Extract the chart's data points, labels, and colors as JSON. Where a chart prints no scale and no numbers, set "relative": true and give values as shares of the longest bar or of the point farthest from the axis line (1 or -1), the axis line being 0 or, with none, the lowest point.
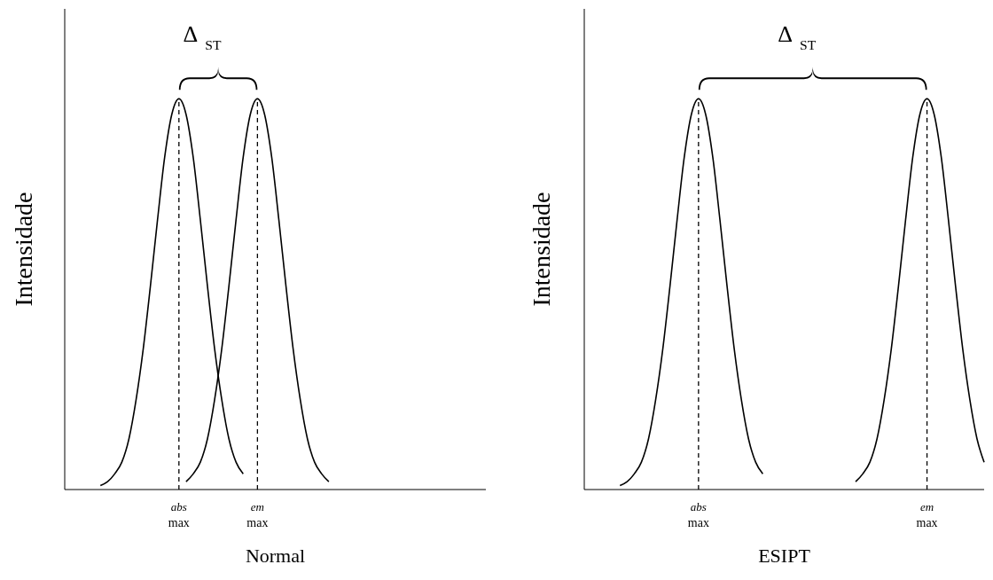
{
  "chart_data": [
    {
      "type": "line",
      "relative": true,
      "tick_labels": "x",
      "xlabel": "Normal",
      "ylabel": "Intensidade",
      "annotations": [
        "Δ$_{ST}$"
      ],
      "categories": [
        null,
        null,
        null,
        null,
        null,
        null,
        null,
        null,
        null,
        null,
        null,
        null,
        null,
        null,
        null,
        null,
        "abs max",
        null,
        null,
        null,
        null,
        null,
        null,
        null,
        null,
        null,
        null,
        "em max",
        null,
        null,
        null,
        null,
        null,
        null,
        null,
        null,
        null,
        null,
        null,
        null,
        null,
        null,
        null,
        null,
        null,
        null,
        null,
        null,
        null,
        null,
        null,
        null,
        null,
        null,
        null,
        null,
        null,
        null,
        null,
        null
      ],
      "series": [
        {
          "color": "#000000",
          "values": [
            null,
            null,
            null,
            null,
            null,
            0.01,
            0.02,
            0.04,
            0.07,
            0.13,
            0.23,
            0.36,
            0.52,
            0.69,
            0.85,
            0.96,
            1,
            0.96,
            0.85,
            0.69,
            0.52,
            0.36,
            0.23,
            0.13,
            0.07,
            0.04,
            null,
            null,
            null,
            null,
            null,
            null,
            null,
            null,
            null,
            null,
            null,
            null,
            null,
            null,
            null,
            null,
            null,
            null,
            null,
            null,
            null,
            null,
            null,
            null,
            null,
            null,
            null,
            null,
            null,
            null,
            null,
            null,
            null,
            null
          ]
        },
        {
          "color": "#000000",
          "values": [
            null,
            null,
            null,
            null,
            null,
            null,
            null,
            null,
            null,
            null,
            null,
            null,
            null,
            null,
            null,
            null,
            null,
            0.02,
            0.04,
            0.07,
            0.13,
            0.23,
            0.36,
            0.52,
            0.69,
            0.85,
            0.96,
            1,
            0.96,
            0.85,
            0.69,
            0.52,
            0.36,
            0.23,
            0.13,
            0.07,
            0.04,
            0.02,
            null,
            null,
            null,
            null,
            null,
            null,
            null,
            null,
            null,
            null,
            null,
            null,
            null,
            null,
            null,
            null,
            null,
            null,
            null,
            null,
            null,
            null
          ]
        }
      ],
      "ref_lines": [
        {
          "axis": "x",
          "value": "abs max",
          "line_style": "dashed"
        },
        {
          "axis": "x",
          "value": "em max",
          "line_style": "dashed"
        }
      ]
    },
    {
      "type": "line",
      "relative": true,
      "tick_labels": "x",
      "xlabel": "ESIPT",
      "ylabel": "Intensidade",
      "annotations": [
        "Δ$_{ST}$"
      ],
      "categories": [
        null,
        null,
        null,
        null,
        null,
        null,
        null,
        null,
        null,
        null,
        null,
        null,
        null,
        null,
        null,
        null,
        "abs max",
        null,
        null,
        null,
        null,
        null,
        null,
        null,
        null,
        null,
        null,
        null,
        null,
        null,
        null,
        null,
        null,
        null,
        null,
        null,
        null,
        null,
        null,
        null,
        null,
        null,
        null,
        null,
        null,
        null,
        null,
        null,
        "em max",
        null,
        null,
        null,
        null,
        null,
        null,
        null,
        null
      ],
      "series": [
        {
          "color": "#000000",
          "values": [
            null,
            null,
            null,
            null,
            null,
            0.01,
            0.02,
            0.04,
            0.07,
            0.13,
            0.23,
            0.36,
            0.52,
            0.69,
            0.85,
            0.96,
            1,
            0.96,
            0.85,
            0.69,
            0.52,
            0.36,
            0.23,
            0.13,
            0.07,
            0.04,
            null,
            null,
            null,
            null,
            null,
            null,
            null,
            null,
            null,
            null,
            null,
            null,
            null,
            null,
            null,
            null,
            null,
            null,
            null,
            null,
            null,
            null,
            null,
            null,
            null,
            null,
            null,
            null,
            null,
            null,
            null
          ]
        },
        {
          "color": "#000000",
          "values": [
            null,
            null,
            null,
            null,
            null,
            null,
            null,
            null,
            null,
            null,
            null,
            null,
            null,
            null,
            null,
            null,
            null,
            null,
            null,
            null,
            null,
            null,
            null,
            null,
            null,
            null,
            null,
            null,
            null,
            null,
            null,
            null,
            null,
            null,
            null,
            null,
            null,
            null,
            0.02,
            0.04,
            0.07,
            0.13,
            0.23,
            0.36,
            0.52,
            0.69,
            0.85,
            0.96,
            1,
            0.96,
            0.85,
            0.69,
            0.52,
            0.36,
            0.23,
            0.13,
            0.07
          ]
        }
      ],
      "ref_lines": [
        {
          "axis": "x",
          "value": "abs max",
          "line_style": "dashed"
        },
        {
          "axis": "x",
          "value": "em max",
          "line_style": "dashed"
        }
      ]
    }
  ]
}
